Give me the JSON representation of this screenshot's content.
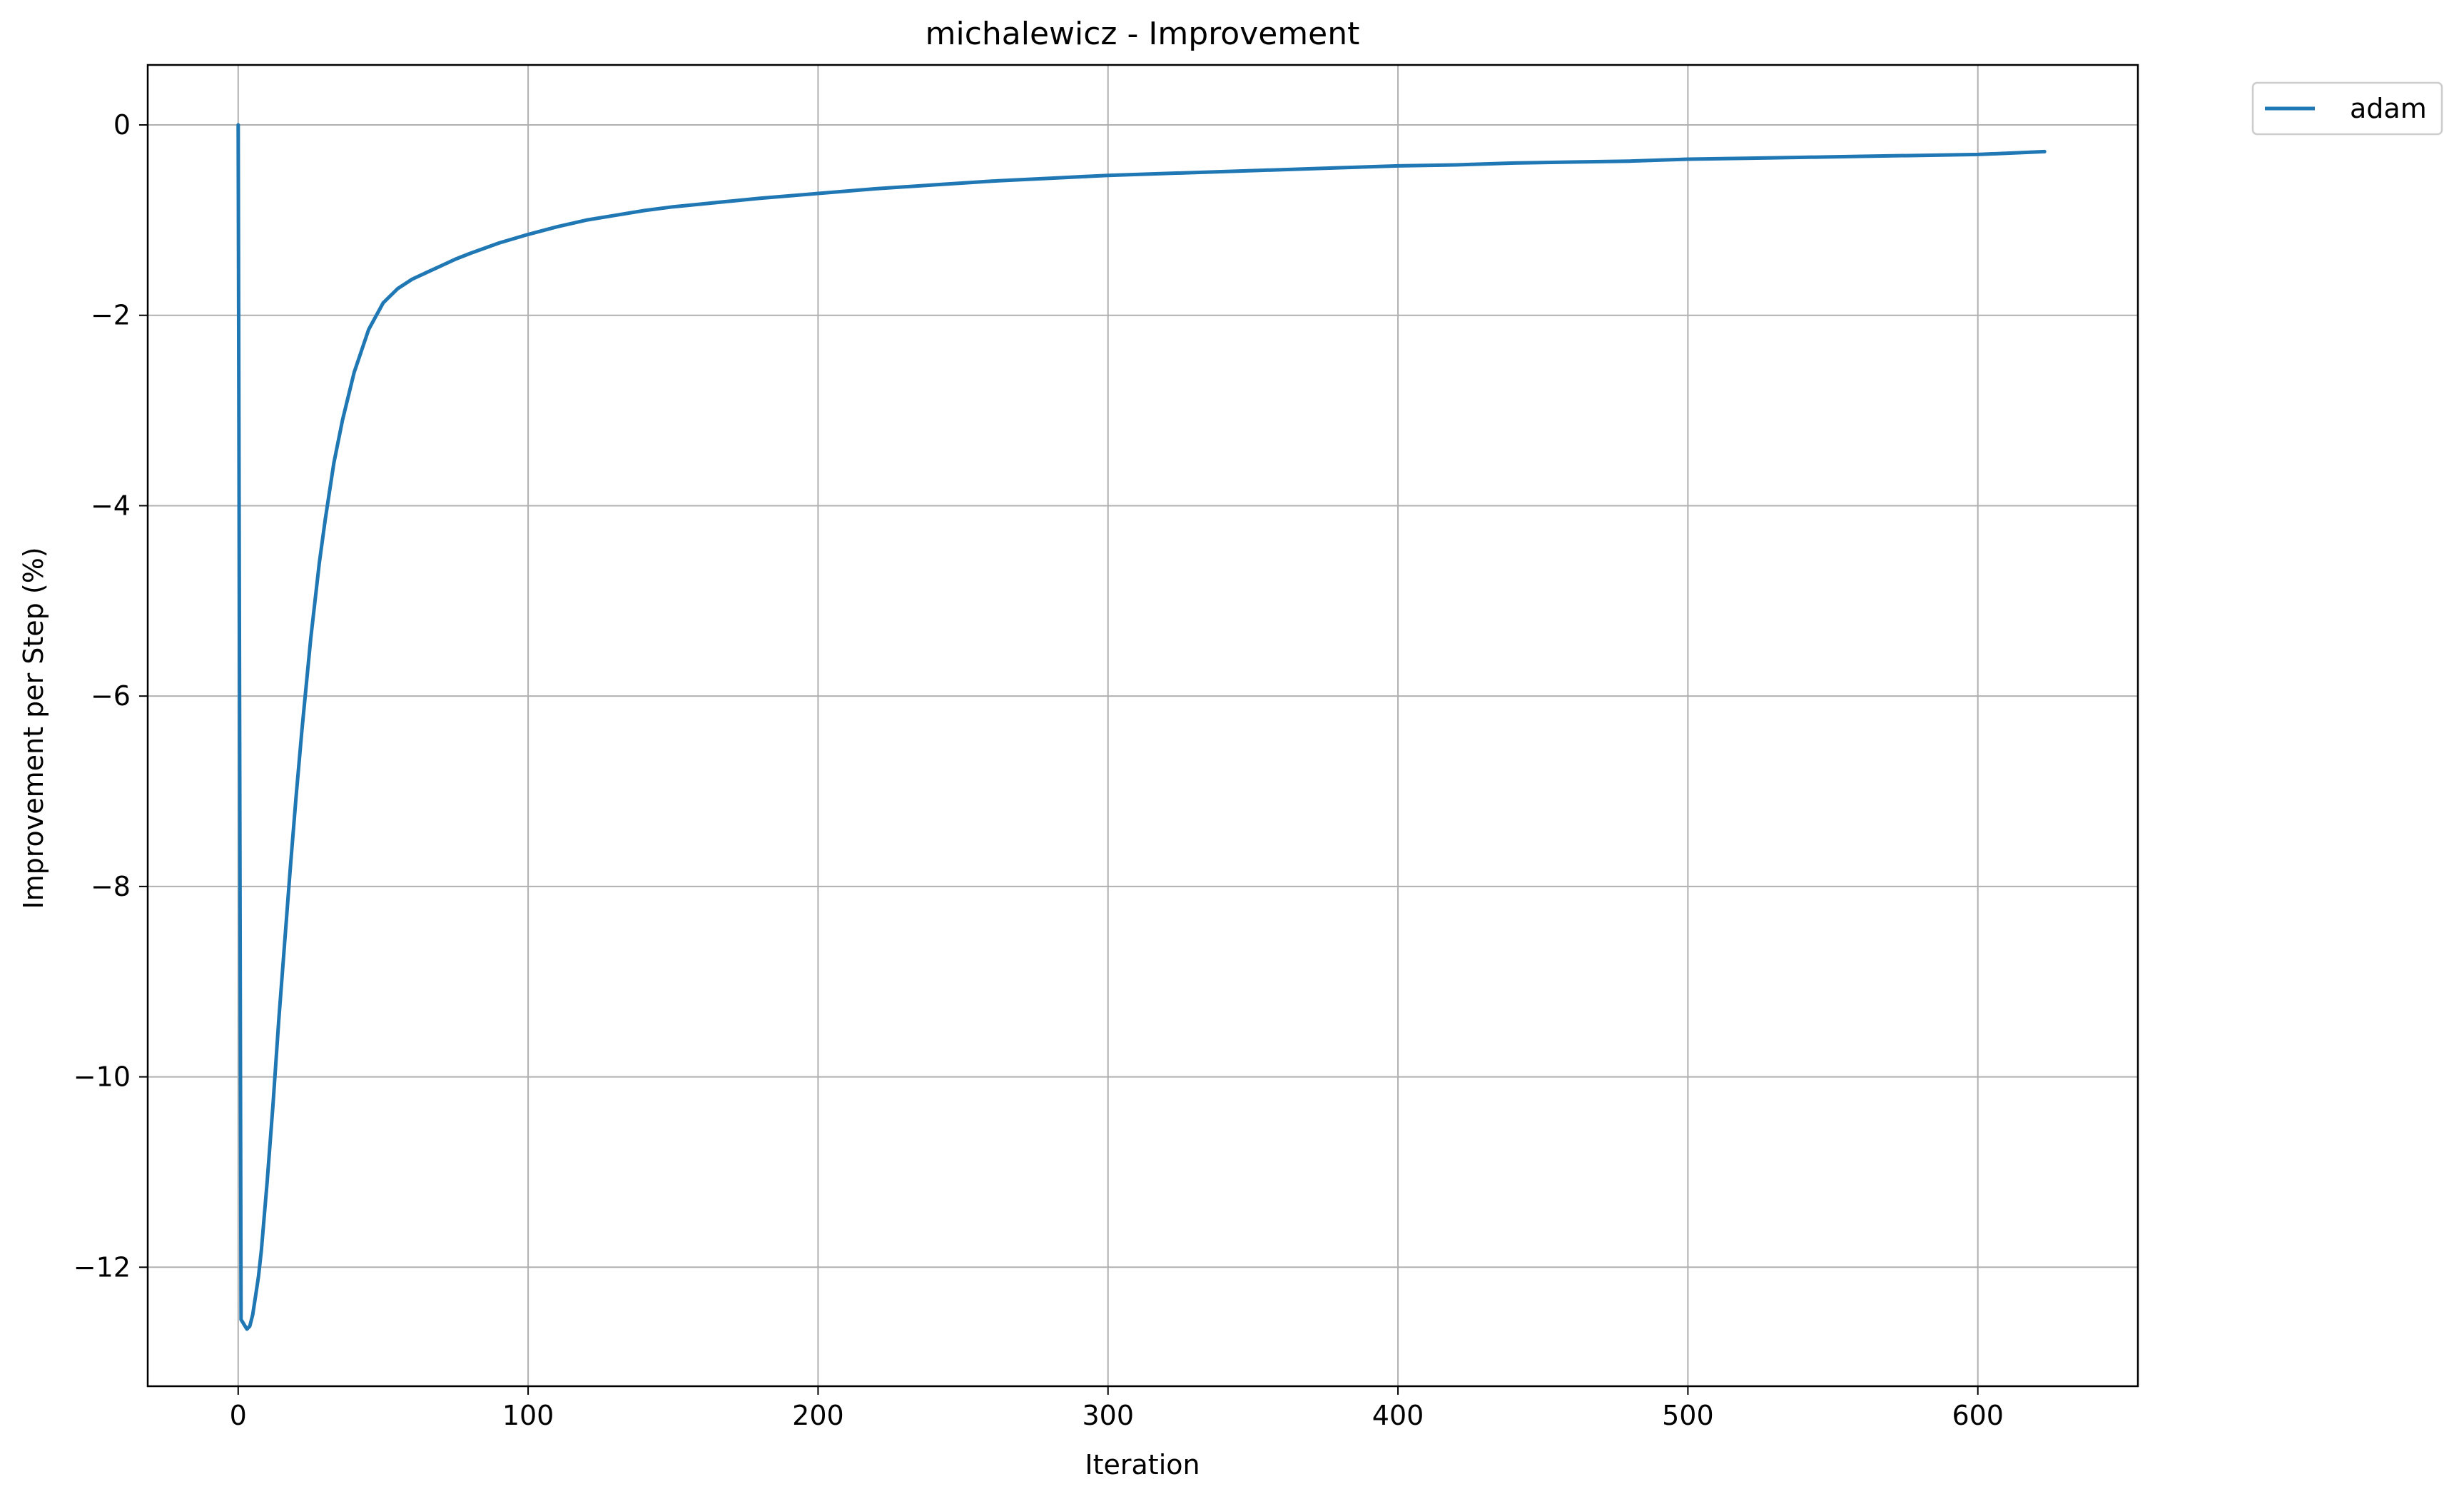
{
  "chart_data": {
    "type": "line",
    "title": "michalewicz - Improvement",
    "xlabel": "Iteration",
    "ylabel": "Improvement per Step (%)",
    "xlim": [
      -31.2,
      655.2
    ],
    "ylim": [
      -13.25,
      0.63
    ],
    "xticks": [
      0,
      100,
      200,
      300,
      400,
      500,
      600
    ],
    "yticks": [
      0,
      -2,
      -4,
      -6,
      -8,
      -10,
      -12
    ],
    "xtick_labels": [
      "0",
      "100",
      "200",
      "300",
      "400",
      "500",
      "600"
    ],
    "ytick_labels": [
      "0",
      "−2",
      "−4",
      "−6",
      "−8",
      "−10",
      "−12"
    ],
    "grid": true,
    "legend_position": "outside-top-right",
    "series": [
      {
        "name": "adam",
        "color": "#1f77b4",
        "x": [
          0,
          1,
          2,
          3,
          4,
          5,
          6,
          7,
          8,
          10,
          12,
          14,
          16,
          18,
          20,
          22,
          25,
          28,
          30,
          33,
          36,
          40,
          45,
          50,
          55,
          60,
          65,
          70,
          75,
          80,
          90,
          100,
          110,
          120,
          130,
          140,
          150,
          160,
          170,
          180,
          200,
          220,
          240,
          260,
          280,
          300,
          320,
          340,
          360,
          380,
          400,
          420,
          440,
          460,
          480,
          500,
          520,
          540,
          560,
          580,
          600,
          623
        ],
        "y": [
          0,
          -12.55,
          -12.6,
          -12.65,
          -12.62,
          -12.5,
          -12.3,
          -12.1,
          -11.82,
          -11.1,
          -10.3,
          -9.4,
          -8.6,
          -7.8,
          -7.05,
          -6.35,
          -5.4,
          -4.6,
          -4.15,
          -3.55,
          -3.1,
          -2.6,
          -2.15,
          -1.87,
          -1.72,
          -1.62,
          -1.55,
          -1.48,
          -1.41,
          -1.35,
          -1.24,
          -1.15,
          -1.07,
          -1.0,
          -0.95,
          -0.9,
          -0.86,
          -0.83,
          -0.8,
          -0.77,
          -0.72,
          -0.67,
          -0.63,
          -0.59,
          -0.56,
          -0.53,
          -0.51,
          -0.49,
          -0.47,
          -0.45,
          -0.43,
          -0.42,
          -0.4,
          -0.39,
          -0.38,
          -0.36,
          -0.35,
          -0.34,
          -0.33,
          -0.32,
          -0.31,
          -0.28
        ]
      }
    ]
  }
}
